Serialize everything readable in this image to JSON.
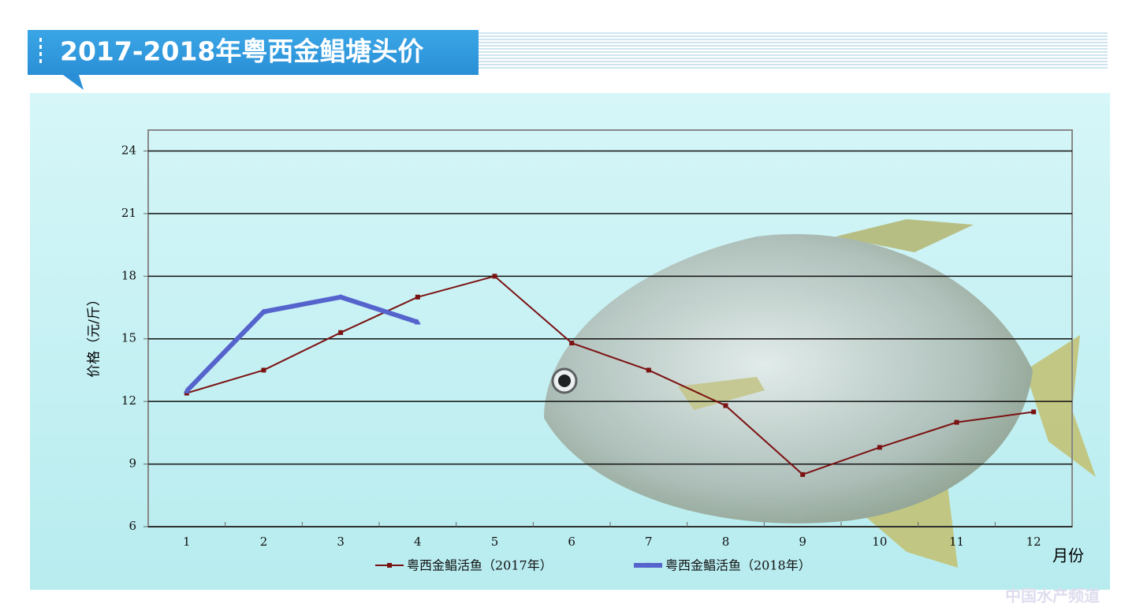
{
  "chart_data": {
    "type": "line",
    "title": "2017-2018年粤西金鲳塘头价",
    "y_label": "价格（元/斤）",
    "x_label": "月份",
    "watermark": "中国水产频道",
    "categories": [
      "1",
      "2",
      "3",
      "4",
      "5",
      "6",
      "7",
      "8",
      "9",
      "10",
      "11",
      "12"
    ],
    "series": [
      {
        "name": "粤西金鲳活鱼（2017年）",
        "color": "#7b1212",
        "values": [
          12.4,
          13.5,
          15.3,
          17.0,
          18.0,
          14.8,
          13.5,
          11.8,
          8.5,
          9.8,
          11.0,
          11.5
        ]
      },
      {
        "name": "粤西金鲳活鱼（2018年）",
        "color": "#5563cc",
        "values": [
          12.5,
          16.3,
          17.0,
          15.8,
          null,
          null,
          null,
          null,
          null,
          null,
          null,
          null
        ]
      }
    ],
    "ylim": [
      6,
      25
    ],
    "yticks": [
      6,
      9,
      12,
      15,
      18,
      21,
      24
    ],
    "grid": true
  }
}
